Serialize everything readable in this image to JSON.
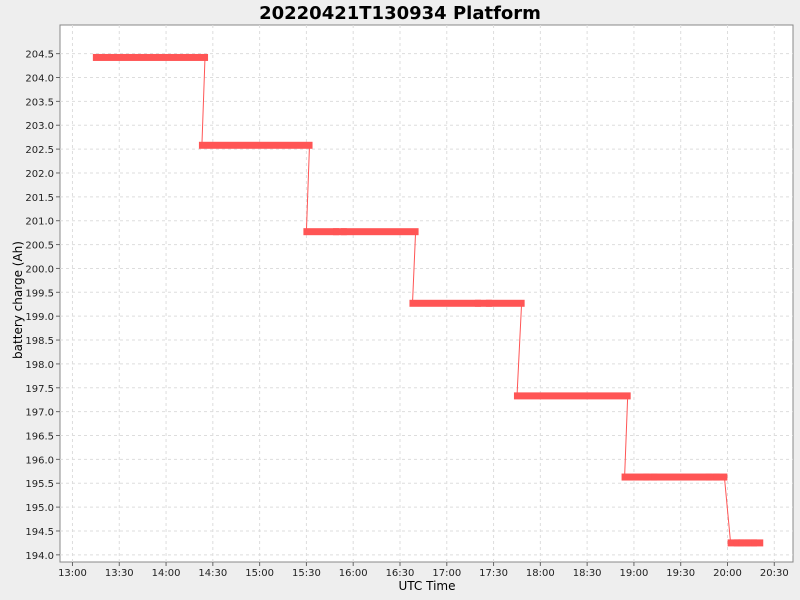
{
  "chart_data": {
    "type": "line",
    "title": "20220421T130934 Platform",
    "xlabel": "UTC Time",
    "ylabel": "battery charge (Ah)",
    "x_ticks": [
      "13:00",
      "13:30",
      "14:00",
      "14:30",
      "15:00",
      "15:30",
      "16:00",
      "16:30",
      "17:00",
      "17:30",
      "18:00",
      "18:30",
      "19:00",
      "19:30",
      "20:00",
      "20:30"
    ],
    "y_ticks": [
      "194.0",
      "194.5",
      "195.0",
      "195.5",
      "196.0",
      "196.5",
      "197.0",
      "197.5",
      "198.0",
      "198.5",
      "199.0",
      "199.5",
      "200.0",
      "200.5",
      "201.0",
      "201.5",
      "202.0",
      "202.5",
      "203.0",
      "203.5",
      "204.0",
      "204.5"
    ],
    "xlim": [
      "12:52",
      "20:42"
    ],
    "ylim": [
      193.85,
      205.1
    ],
    "grid": true,
    "colors": {
      "series": "#ff5555",
      "grid": "#dddddd",
      "plot_bg": "#ffffff",
      "page_bg": "#eeeeee"
    },
    "series": [
      {
        "values_note": "",
        "points": [
          [
            "13:15",
            204.42
          ],
          [
            "14:25",
            204.42
          ],
          [
            "14:23",
            202.58
          ],
          [
            "15:32",
            202.58
          ],
          [
            "15:30",
            200.77
          ],
          [
            "15:49",
            200.77
          ],
          [
            "15:54",
            200.77
          ],
          [
            "16:40",
            200.77
          ],
          [
            "16:38",
            199.27
          ],
          [
            "17:20",
            199.27
          ],
          [
            "17:27",
            199.27
          ],
          [
            "17:48",
            199.27
          ],
          [
            "17:45",
            197.33
          ],
          [
            "18:56",
            197.33
          ],
          [
            "18:54",
            195.63
          ],
          [
            "19:08",
            195.63
          ],
          [
            "19:13",
            195.63
          ],
          [
            "19:48",
            195.63
          ],
          [
            "19:53",
            195.63
          ],
          [
            "19:58",
            195.63
          ],
          [
            "20:02",
            194.25
          ],
          [
            "20:06",
            194.25
          ],
          [
            "20:09",
            194.25
          ],
          [
            "20:13",
            194.25
          ],
          [
            "20:17",
            194.25
          ],
          [
            "20:21",
            194.25
          ]
        ]
      }
    ]
  }
}
